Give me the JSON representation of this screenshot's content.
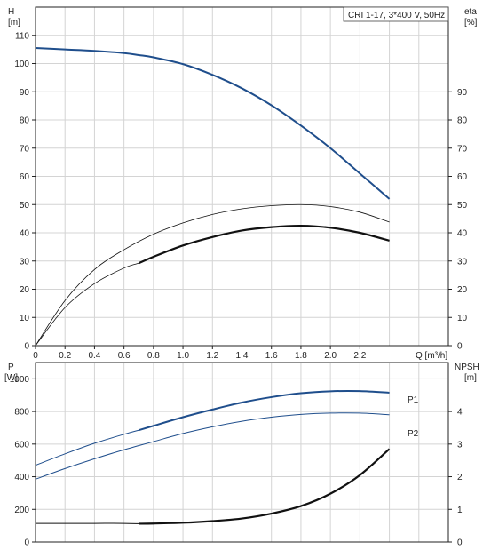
{
  "chart_data": [
    {
      "type": "line",
      "panel": "top",
      "title_box": "CRI 1-17, 3*400 V, 50Hz",
      "left_axis": {
        "label": "H",
        "unit": "[m]",
        "ylim": [
          0,
          120
        ],
        "ticks": [
          0,
          10,
          20,
          30,
          40,
          50,
          60,
          70,
          80,
          90,
          100,
          110
        ]
      },
      "right_axis": {
        "label": "eta",
        "unit": "[%]",
        "ylim": [
          0,
          120
        ],
        "ticks": [
          0,
          10,
          20,
          30,
          40,
          50,
          60,
          70,
          80,
          90
        ]
      },
      "x_axis": {
        "label": "Q [m³/h]",
        "xlim": [
          0,
          2.8
        ],
        "ticks": [
          "0",
          "0.2",
          "0.4",
          "0.6",
          "0.8",
          "1.0",
          "1.2",
          "1.4",
          "1.6",
          "1.8",
          "2.0",
          "2.2"
        ]
      },
      "grid": true,
      "series": [
        {
          "id": "H",
          "axis": "left",
          "color": "#1f4e8c",
          "width": 2,
          "dashed_start": false,
          "x": [
            0,
            0.2,
            0.4,
            0.6,
            0.7,
            0.8,
            1.0,
            1.2,
            1.4,
            1.6,
            1.8,
            2.0,
            2.2,
            2.4
          ],
          "y": [
            105.5,
            105.0,
            104.5,
            103.7,
            103.0,
            102.2,
            99.8,
            96.0,
            91.2,
            85.2,
            78.0,
            70.0,
            61.0,
            52.0
          ]
        },
        {
          "id": "eta_total",
          "axis": "right",
          "color": "#111111",
          "width": 0.8,
          "x": [
            0,
            0.2,
            0.4,
            0.6,
            0.8,
            1.0,
            1.2,
            1.4,
            1.6,
            1.8,
            2.0,
            2.2,
            2.4
          ],
          "y": [
            0,
            16,
            27,
            34,
            39.5,
            43.5,
            46.5,
            48.5,
            49.6,
            50.0,
            49.3,
            47.3,
            43.8
          ]
        },
        {
          "id": "eta_pump",
          "axis": "right",
          "color": "#111111",
          "width": 0.8,
          "thick_from": 0.7,
          "thick_width": 2.2,
          "x": [
            0,
            0.2,
            0.4,
            0.6,
            0.7,
            0.8,
            1.0,
            1.2,
            1.4,
            1.6,
            1.8,
            2.0,
            2.2,
            2.4
          ],
          "y": [
            0,
            13.5,
            22,
            27.5,
            29.2,
            31.5,
            35.5,
            38.5,
            40.8,
            42.0,
            42.5,
            41.8,
            40.0,
            37.2
          ]
        }
      ]
    },
    {
      "type": "line",
      "panel": "bottom",
      "left_axis": {
        "label": "P",
        "unit": "[W]",
        "ylim": [
          0,
          1100
        ],
        "ticks": [
          0,
          200,
          400,
          600,
          800,
          1000
        ]
      },
      "right_axis": {
        "label": "NPSH",
        "unit": "[m]",
        "ylim": [
          0,
          5.5
        ],
        "ticks": [
          0,
          1,
          2,
          3,
          4
        ]
      },
      "x_axis": {
        "xlim": [
          0,
          2.8
        ]
      },
      "grid": true,
      "series": [
        {
          "id": "P1",
          "name": "P1",
          "axis": "left",
          "color": "#1f4e8c",
          "width": 1,
          "thick_from": 0.7,
          "thick_width": 2,
          "x": [
            0,
            0.2,
            0.4,
            0.6,
            0.7,
            0.8,
            1.0,
            1.2,
            1.4,
            1.6,
            1.8,
            2.0,
            2.2,
            2.4
          ],
          "y": [
            470,
            540,
            605,
            660,
            685,
            712,
            765,
            812,
            855,
            888,
            912,
            924,
            925,
            915
          ]
        },
        {
          "id": "P2",
          "name": "P2",
          "axis": "left",
          "color": "#1f4e8c",
          "width": 1,
          "x": [
            0,
            0.2,
            0.4,
            0.6,
            0.8,
            1.0,
            1.2,
            1.4,
            1.6,
            1.8,
            2.0,
            2.2,
            2.4
          ],
          "y": [
            385,
            450,
            510,
            565,
            615,
            665,
            706,
            740,
            765,
            782,
            790,
            790,
            780
          ]
        },
        {
          "id": "NPSH",
          "axis": "right",
          "color": "#111111",
          "width": 1,
          "thick_from": 0.7,
          "thick_width": 2.2,
          "x": [
            0,
            0.2,
            0.4,
            0.6,
            0.7,
            0.8,
            1.0,
            1.2,
            1.4,
            1.6,
            1.8,
            2.0,
            2.2,
            2.4
          ],
          "y": [
            0.57,
            0.57,
            0.57,
            0.57,
            0.56,
            0.565,
            0.59,
            0.64,
            0.72,
            0.87,
            1.1,
            1.48,
            2.05,
            2.85
          ]
        }
      ]
    }
  ]
}
